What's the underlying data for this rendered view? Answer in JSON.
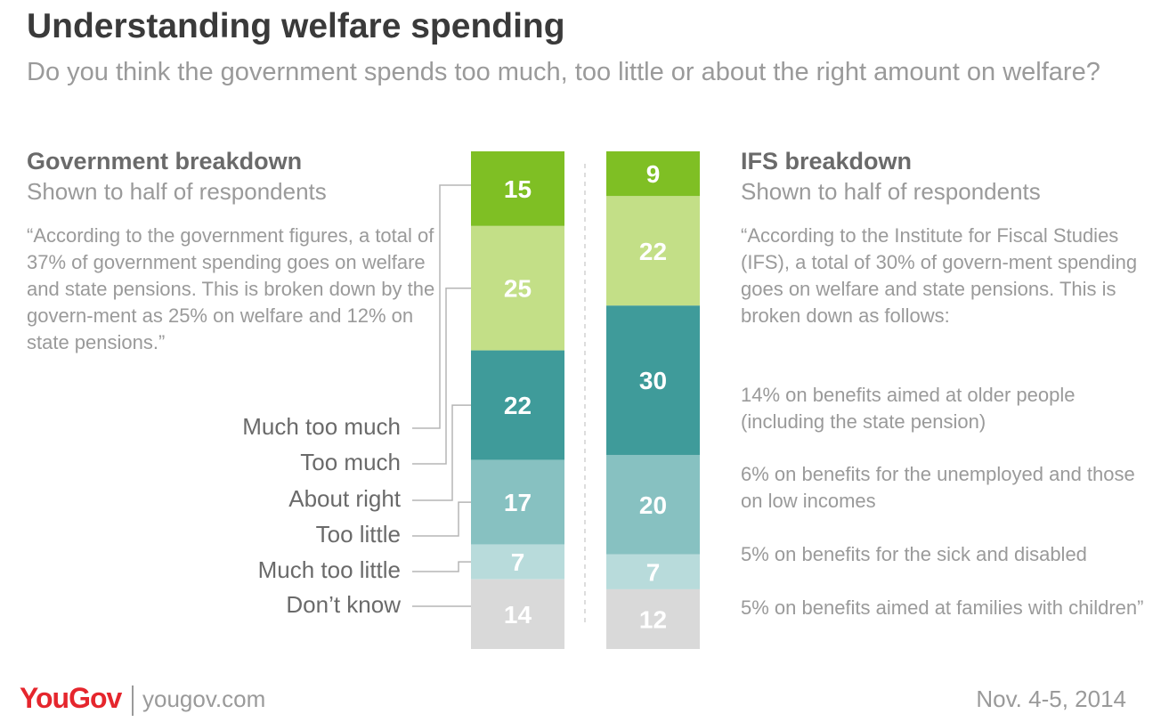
{
  "header": {
    "title": "Understanding welfare spending",
    "subtitle": "Do you think the government spends too much, too little or about the right amount on welfare?"
  },
  "left_panel": {
    "heading": "Government breakdown",
    "subheading": "Shown to half of respondents",
    "quote": "“According to the government figures, a total of 37% of government spending goes on welfare and state pensions. This is broken down by the govern-ment as 25% on welfare and 12% on state pensions.”"
  },
  "right_panel": {
    "heading": "IFS breakdown",
    "subheading": "Shown to half of respondents",
    "quote": "“According to the Institute for Fiscal Studies (IFS), a total of 30% of govern-ment spending goes on welfare and state pensions. This is broken down as follows:",
    "lines": [
      "14% on benefits aimed at older people (including the state pension)",
      "6% on benefits for the unemployed and those on low incomes",
      "5% on benefits for the sick and disabled",
      "5% on benefits aimed at families with children”"
    ]
  },
  "chart_data": {
    "type": "bar",
    "stacked": true,
    "categories": [
      "Much too much",
      "Too much",
      "About right",
      "Too little",
      "Much too little",
      "Don’t know"
    ],
    "colors": [
      "#7fbf24",
      "#c3df87",
      "#3f9b9a",
      "#87c1c1",
      "#b8dbdb",
      "#d9d9d9"
    ],
    "series": [
      {
        "name": "",
        "values": [
          15,
          25,
          22,
          17,
          7,
          14
        ]
      },
      {
        "name": "",
        "values": [
          9,
          22,
          30,
          20,
          7,
          12
        ]
      }
    ]
  },
  "footer": {
    "brand": "YouGov",
    "url": "yougov.com",
    "date": "Nov. 4-5, 2014"
  }
}
